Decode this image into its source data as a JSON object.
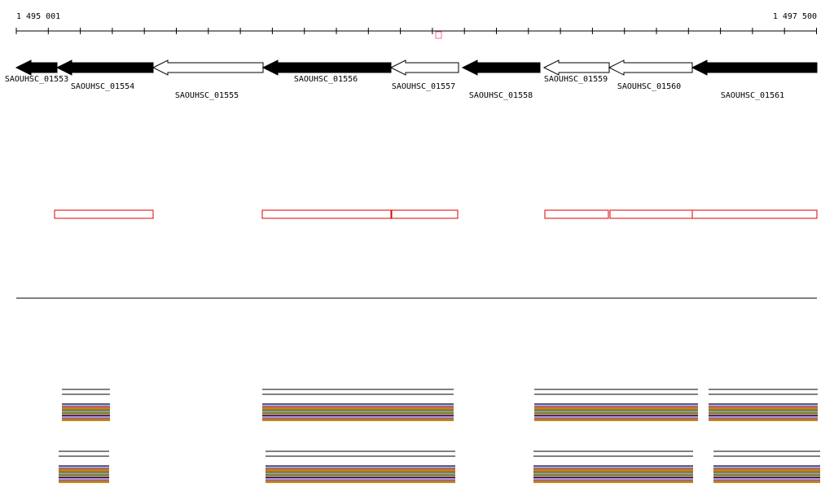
{
  "ruler": {
    "start_label": "1 495 001",
    "end_label": "1 497 500"
  },
  "genes": [
    "SAOUHSC_01553",
    "SAOUHSC_01554",
    "SAOUHSC_01555",
    "SAOUHSC_01556",
    "SAOUHSC_01557",
    "SAOUHSC_01558",
    "SAOUHSC_01559",
    "SAOUHSC_01560",
    "SAOUHSC_01561"
  ]
}
